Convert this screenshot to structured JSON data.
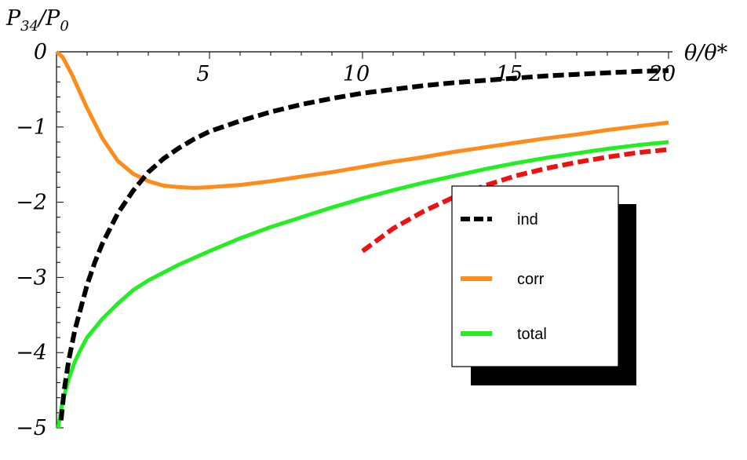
{
  "chart_data": {
    "type": "line",
    "xlabel": "θ/θ*",
    "ylabel": "P34/P0",
    "ylabel_parts": {
      "base": "P",
      "sub": "34",
      "sep": "/P",
      "sub2": "0"
    },
    "xlim": [
      0,
      20
    ],
    "ylim": [
      -5,
      0
    ],
    "x_ticks": [
      5,
      10,
      15,
      20
    ],
    "x_tick_labels": [
      "5",
      "10",
      "15",
      "20"
    ],
    "y_ticks": [
      0,
      -1,
      -2,
      -3,
      -4,
      -5
    ],
    "y_tick_labels": [
      "0",
      "−1",
      "−2",
      "−3",
      "−4",
      "−5"
    ],
    "legend_position": "right",
    "series": [
      {
        "name": "ind",
        "color": "#000000",
        "style": "dashed",
        "points": [
          [
            0.15,
            -4.9
          ],
          [
            0.25,
            -4.5
          ],
          [
            0.4,
            -4.1
          ],
          [
            0.6,
            -3.7
          ],
          [
            0.8,
            -3.4
          ],
          [
            1,
            -3.1
          ],
          [
            1.25,
            -2.8
          ],
          [
            1.5,
            -2.55
          ],
          [
            2,
            -2.15
          ],
          [
            2.5,
            -1.85
          ],
          [
            3,
            -1.6
          ],
          [
            3.5,
            -1.42
          ],
          [
            4,
            -1.28
          ],
          [
            4.5,
            -1.16
          ],
          [
            5,
            -1.06
          ],
          [
            6,
            -0.92
          ],
          [
            7,
            -0.8
          ],
          [
            8,
            -0.7
          ],
          [
            9,
            -0.62
          ],
          [
            10,
            -0.55
          ],
          [
            11,
            -0.5
          ],
          [
            12,
            -0.45
          ],
          [
            13,
            -0.41
          ],
          [
            14,
            -0.38
          ],
          [
            15,
            -0.35
          ],
          [
            16,
            -0.32
          ],
          [
            17,
            -0.3
          ],
          [
            18,
            -0.28
          ],
          [
            19,
            -0.26
          ],
          [
            20,
            -0.25
          ]
        ]
      },
      {
        "name": "corr",
        "color": "#FF8C1A",
        "style": "solid",
        "points": [
          [
            0,
            0
          ],
          [
            0.2,
            -0.07
          ],
          [
            0.5,
            -0.3
          ],
          [
            1,
            -0.75
          ],
          [
            1.5,
            -1.15
          ],
          [
            2,
            -1.45
          ],
          [
            2.5,
            -1.62
          ],
          [
            3,
            -1.72
          ],
          [
            3.5,
            -1.78
          ],
          [
            4,
            -1.8
          ],
          [
            4.5,
            -1.81
          ],
          [
            5,
            -1.8
          ],
          [
            6,
            -1.77
          ],
          [
            7,
            -1.72
          ],
          [
            8,
            -1.66
          ],
          [
            9,
            -1.6
          ],
          [
            10,
            -1.53
          ],
          [
            11,
            -1.46
          ],
          [
            12,
            -1.4
          ],
          [
            13,
            -1.33
          ],
          [
            14,
            -1.27
          ],
          [
            15,
            -1.21
          ],
          [
            16,
            -1.15
          ],
          [
            17,
            -1.1
          ],
          [
            18,
            -1.04
          ],
          [
            19,
            -0.99
          ],
          [
            20,
            -0.94
          ]
        ]
      },
      {
        "name": "total",
        "color": "#22EE22",
        "style": "solid",
        "points": [
          [
            0.05,
            -5
          ],
          [
            0.2,
            -4.65
          ],
          [
            0.4,
            -4.35
          ],
          [
            0.6,
            -4.12
          ],
          [
            0.8,
            -3.95
          ],
          [
            1,
            -3.8
          ],
          [
            1.5,
            -3.55
          ],
          [
            2,
            -3.35
          ],
          [
            2.5,
            -3.17
          ],
          [
            3,
            -3.04
          ],
          [
            4,
            -2.83
          ],
          [
            5,
            -2.65
          ],
          [
            6,
            -2.48
          ],
          [
            7,
            -2.33
          ],
          [
            8,
            -2.2
          ],
          [
            9,
            -2.07
          ],
          [
            10,
            -1.95
          ],
          [
            11,
            -1.84
          ],
          [
            12,
            -1.74
          ],
          [
            13,
            -1.65
          ],
          [
            14,
            -1.56
          ],
          [
            15,
            -1.48
          ],
          [
            16,
            -1.41
          ],
          [
            17,
            -1.35
          ],
          [
            18,
            -1.29
          ],
          [
            19,
            -1.24
          ],
          [
            20,
            -1.2
          ]
        ]
      },
      {
        "name": "",
        "color": "#EE1111",
        "style": "dashed",
        "points": [
          [
            10,
            -2.65
          ],
          [
            11,
            -2.35
          ],
          [
            12,
            -2.12
          ],
          [
            13,
            -1.93
          ],
          [
            14,
            -1.78
          ],
          [
            15,
            -1.65
          ],
          [
            16,
            -1.55
          ],
          [
            17,
            -1.47
          ],
          [
            18,
            -1.4
          ],
          [
            19,
            -1.34
          ],
          [
            20,
            -1.3
          ]
        ]
      }
    ],
    "legend": [
      {
        "label": "ind",
        "color": "#000000",
        "style": "dashed"
      },
      {
        "label": "corr",
        "color": "#FF8C1A",
        "style": "solid"
      },
      {
        "label": "total",
        "color": "#22EE22",
        "style": "solid"
      }
    ]
  }
}
